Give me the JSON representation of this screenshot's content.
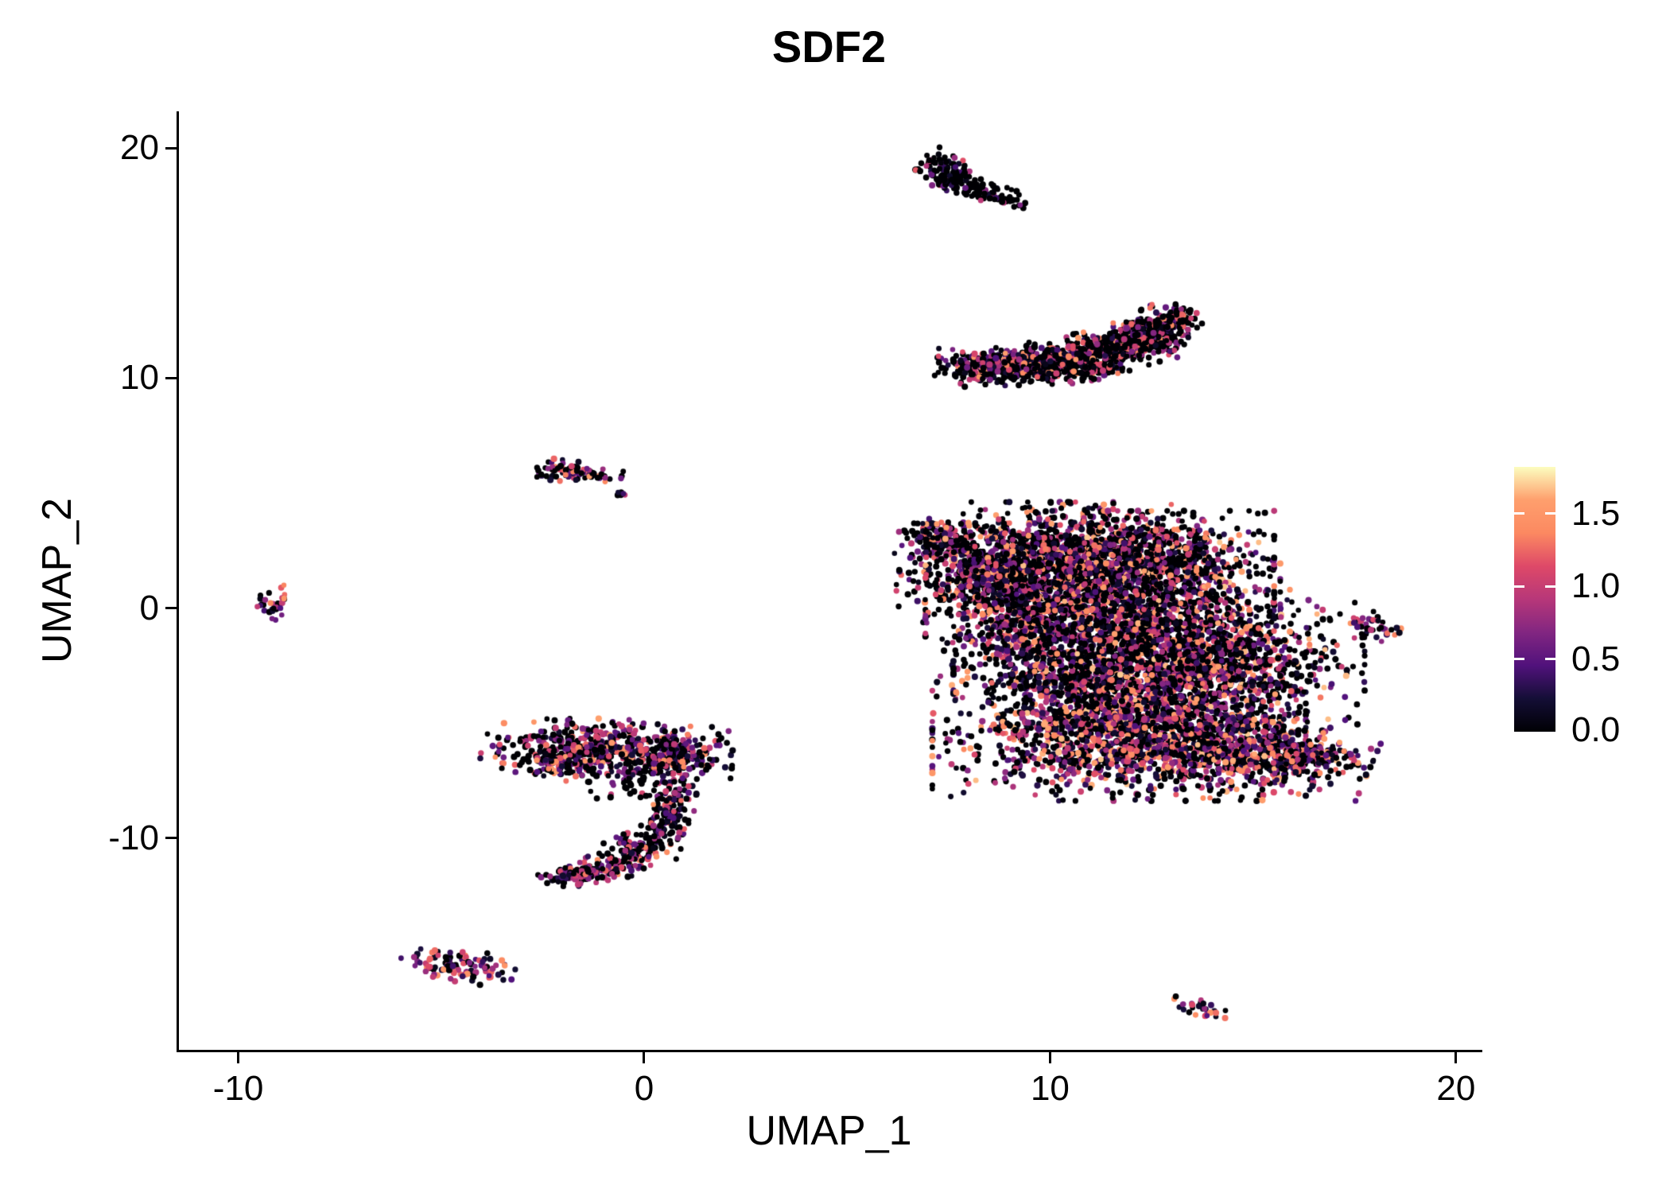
{
  "chart_data": {
    "type": "scatter",
    "title": "SDF2",
    "xlabel": "UMAP_1",
    "ylabel": "UMAP_2",
    "x_ticks": [
      "-10",
      "0",
      "10",
      "20"
    ],
    "x_tick_values": [
      -10,
      0,
      10,
      20
    ],
    "y_ticks": [
      "20",
      "10",
      "0",
      "-10"
    ],
    "y_tick_values": [
      20,
      10,
      0,
      -10
    ],
    "xlim": [
      -11.46,
      20.57
    ],
    "ylim": [
      -19.2,
      21.6
    ],
    "grid": false,
    "background": "#ffffff",
    "axis_color": "#000000",
    "legend": {
      "position": "right",
      "ticks": [
        "1.5",
        "1.0",
        "0.5",
        "0.0"
      ],
      "tick_values": [
        1.5,
        1.0,
        0.5,
        0.0
      ],
      "vmin": 0,
      "vmax": 1.82
    },
    "colormap": {
      "name": "magma",
      "stops": [
        {
          "t": 0,
          "c": "#000004"
        },
        {
          "t": 0.125,
          "c": "#140e36"
        },
        {
          "t": 0.25,
          "c": "#51127c"
        },
        {
          "t": 0.375,
          "c": "#822681"
        },
        {
          "t": 0.5,
          "c": "#b73779"
        },
        {
          "t": 0.625,
          "c": "#de4968"
        },
        {
          "t": 0.75,
          "c": "#fc8961"
        },
        {
          "t": 0.875,
          "c": "#fe9f6d"
        },
        {
          "t": 1,
          "c": "#fcfdbf"
        }
      ]
    },
    "point_radius": 3.6,
    "seed": 1337,
    "clusters": [
      {
        "name": "top-small-a",
        "cx": 7.45,
        "cy": 19.05,
        "rx": 0.3,
        "ry": 0.42,
        "rot": 25,
        "n": 80,
        "zero": 0.5,
        "vmax": 1.3,
        "vpow": 1.6
      },
      {
        "name": "top-small-b",
        "cx": 8.2,
        "cy": 18.2,
        "rx": 0.72,
        "ry": 0.2,
        "rot": -32,
        "n": 120,
        "zero": 0.82,
        "vmax": 1.0,
        "vpow": 1.6
      },
      {
        "name": "crescent-1",
        "cx": 8.35,
        "cy": 10.55,
        "rx": 0.5,
        "ry": 0.28,
        "rot": -5,
        "n": 140,
        "zero": 0.5,
        "vmax": 1.6,
        "vpow": 1.4
      },
      {
        "name": "crescent-2",
        "cx": 9.7,
        "cy": 10.6,
        "rx": 0.9,
        "ry": 0.38,
        "rot": 3,
        "n": 400,
        "zero": 0.5,
        "vmax": 1.6,
        "vpow": 1.4
      },
      {
        "name": "crescent-3",
        "cx": 11.2,
        "cy": 11.1,
        "rx": 0.85,
        "ry": 0.42,
        "rot": 18,
        "n": 430,
        "zero": 0.5,
        "vmax": 1.6,
        "vpow": 1.4
      },
      {
        "name": "crescent-4",
        "cx": 12.45,
        "cy": 11.95,
        "rx": 0.55,
        "ry": 0.4,
        "rot": 40,
        "n": 250,
        "zero": 0.5,
        "vmax": 1.6,
        "vpow": 1.4
      },
      {
        "name": "crescent-5",
        "cx": 13.05,
        "cy": 12.5,
        "rx": 0.28,
        "ry": 0.24,
        "rot": 40,
        "n": 80,
        "zero": 0.55,
        "vmax": 1.4,
        "vpow": 1.4
      },
      {
        "name": "main-top-spur",
        "cx": 7.3,
        "cy": 2.95,
        "rx": 0.5,
        "ry": 0.4,
        "rot": -20,
        "n": 130,
        "zero": 0.42,
        "vmax": 1.6,
        "vpow": 1.3
      },
      {
        "name": "main-left-lobe",
        "cx": 8.4,
        "cy": 1.5,
        "rx": 0.95,
        "ry": 0.95,
        "rot": 0,
        "n": 450,
        "zero": 0.42,
        "vmax": 1.7,
        "vpow": 1.3
      },
      {
        "name": "main-top-1",
        "cx": 10.4,
        "cy": 2.2,
        "rx": 1.5,
        "ry": 1.05,
        "rot": 0,
        "n": 950,
        "zero": 0.44,
        "vmax": 1.7,
        "vpow": 1.3
      },
      {
        "name": "main-top-2",
        "cx": 12.3,
        "cy": 1.7,
        "rx": 1.4,
        "ry": 1.1,
        "rot": 0,
        "n": 950,
        "zero": 0.42,
        "vmax": 1.7,
        "vpow": 1.3
      },
      {
        "name": "main-mid",
        "cx": 11.3,
        "cy": -0.7,
        "rx": 1.9,
        "ry": 1.15,
        "rot": 0,
        "n": 1150,
        "zero": 0.4,
        "vmax": 1.7,
        "vpow": 1.25
      },
      {
        "name": "main-right-lobe",
        "cx": 14.3,
        "cy": -2.3,
        "rx": 1.5,
        "ry": 1.35,
        "rot": 0,
        "n": 900,
        "zero": 0.4,
        "vmax": 1.7,
        "vpow": 1.2
      },
      {
        "name": "main-mid-low",
        "cx": 11.3,
        "cy": -3.3,
        "rx": 1.6,
        "ry": 1.15,
        "rot": 0,
        "n": 900,
        "zero": 0.4,
        "vmax": 1.7,
        "vpow": 1.25
      },
      {
        "name": "main-bottom",
        "cx": 11.7,
        "cy": -5.5,
        "rx": 2.0,
        "ry": 1.25,
        "rot": 0,
        "n": 1250,
        "zero": 0.36,
        "vmax": 1.7,
        "vpow": 1.2
      },
      {
        "name": "main-bottom-right",
        "cx": 14.3,
        "cy": -6.1,
        "rx": 1.6,
        "ry": 0.85,
        "rot": -14,
        "n": 650,
        "zero": 0.34,
        "vmax": 1.7,
        "vpow": 1.15
      },
      {
        "name": "main-tail",
        "cx": 16.2,
        "cy": -6.4,
        "rx": 0.7,
        "ry": 0.4,
        "rot": -12,
        "n": 170,
        "zero": 0.3,
        "vmax": 1.7,
        "vpow": 1.1
      },
      {
        "name": "main-neck",
        "cx": 9.6,
        "cy": -0.6,
        "rx": 0.75,
        "ry": 1.15,
        "rot": 0,
        "n": 260,
        "zero": 0.46,
        "vmax": 1.6,
        "vpow": 1.3
      },
      {
        "name": "right-small",
        "cx": 18.1,
        "cy": -0.75,
        "rx": 0.26,
        "ry": 0.4,
        "rot": 25,
        "n": 42,
        "zero": 0.4,
        "vmax": 1.6,
        "vpow": 1.2
      },
      {
        "name": "left-mid-main",
        "cx": -0.9,
        "cy": -6.2,
        "rx": 1.35,
        "ry": 0.6,
        "rot": -4,
        "n": 520,
        "zero": 0.36,
        "vmax": 1.6,
        "vpow": 1.25
      },
      {
        "name": "left-mid-west",
        "cx": -2.25,
        "cy": -6.6,
        "rx": 0.4,
        "ry": 0.32,
        "rot": 0,
        "n": 90,
        "zero": 0.36,
        "vmax": 1.6,
        "vpow": 1.25
      },
      {
        "name": "left-mid-east",
        "cx": 0.75,
        "cy": -6.4,
        "rx": 0.5,
        "ry": 0.55,
        "rot": 0,
        "n": 150,
        "zero": 0.46,
        "vmax": 1.5,
        "vpow": 1.3
      },
      {
        "name": "left-mid-sparse",
        "cx": 0.2,
        "cy": -7.6,
        "rx": 0.75,
        "ry": 0.5,
        "rot": 0,
        "n": 55,
        "zero": 0.6,
        "vmax": 1.2,
        "vpow": 1.4
      },
      {
        "name": "hook-1",
        "cx": 0.7,
        "cy": -8.5,
        "rx": 0.3,
        "ry": 0.45,
        "rot": 0,
        "n": 60,
        "zero": 0.4,
        "vmax": 1.5,
        "vpow": 1.3
      },
      {
        "name": "hook-2",
        "cx": 0.45,
        "cy": -9.5,
        "rx": 0.28,
        "ry": 0.42,
        "rot": 0,
        "n": 70,
        "zero": 0.36,
        "vmax": 1.5,
        "vpow": 1.3
      },
      {
        "name": "hook-3",
        "cx": -0.1,
        "cy": -10.5,
        "rx": 0.42,
        "ry": 0.34,
        "rot": 28,
        "n": 90,
        "zero": 0.36,
        "vmax": 1.5,
        "vpow": 1.3
      },
      {
        "name": "hook-4",
        "cx": -0.95,
        "cy": -11.3,
        "rx": 0.5,
        "ry": 0.26,
        "rot": 14,
        "n": 100,
        "zero": 0.36,
        "vmax": 1.5,
        "vpow": 1.3
      },
      {
        "name": "hook-5",
        "cx": -1.8,
        "cy": -11.6,
        "rx": 0.35,
        "ry": 0.2,
        "rot": 8,
        "n": 60,
        "zero": 0.4,
        "vmax": 1.4,
        "vpow": 1.3
      },
      {
        "name": "upper-left-strip",
        "cx": -1.8,
        "cy": 5.95,
        "rx": 0.55,
        "ry": 0.2,
        "rot": -10,
        "n": 95,
        "zero": 0.35,
        "vmax": 1.6,
        "vpow": 1.2
      },
      {
        "name": "upper-left-dots",
        "cx": -0.55,
        "cy": 4.95,
        "rx": 0.12,
        "ry": 0.07,
        "rot": 0,
        "n": 6,
        "zero": 0.5,
        "vmax": 1.0,
        "vpow": 1.3
      },
      {
        "name": "far-left",
        "cx": -9.1,
        "cy": 0.25,
        "rx": 0.2,
        "ry": 0.34,
        "rot": -25,
        "n": 30,
        "zero": 0.35,
        "vmax": 1.5,
        "vpow": 1.2
      },
      {
        "name": "bottom-left",
        "cx": -4.6,
        "cy": -15.55,
        "rx": 0.62,
        "ry": 0.3,
        "rot": -12,
        "n": 110,
        "zero": 0.3,
        "vmax": 1.5,
        "vpow": 1.15
      },
      {
        "name": "bottom-right-tiny",
        "cx": 13.7,
        "cy": -17.35,
        "rx": 0.33,
        "ry": 0.16,
        "rot": -28,
        "n": 30,
        "zero": 0.25,
        "vmax": 1.6,
        "vpow": 1.1
      }
    ]
  }
}
